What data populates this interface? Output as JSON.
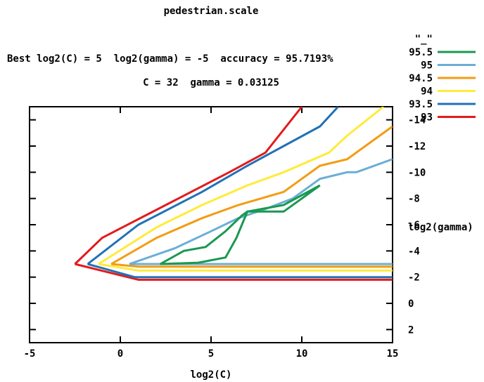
{
  "chart_data": {
    "type": "line",
    "title": "pedestrian.scale",
    "subtitle_1": "Best log2(C) = 5  log2(gamma) = -5  accuracy = 95.7193%",
    "subtitle_2": "C = 32  gamma = 0.03125",
    "xlabel": "log2(C)",
    "ylabel": "log2(gamma)",
    "xlim": [
      -5,
      15
    ],
    "ylim": [
      3,
      -15
    ],
    "x_ticks": [
      -5,
      0,
      5,
      10,
      15
    ],
    "y_ticks": [
      2,
      0,
      -2,
      -4,
      -6,
      -8,
      -10,
      -12,
      -14
    ],
    "x_tick_labels": [
      "-5",
      "0",
      "5",
      "10",
      "15"
    ],
    "y_tick_labels": [
      "2",
      "0",
      "-2",
      "-4",
      "-6",
      "-8",
      "-10",
      "-12",
      "-14"
    ],
    "legend_placement": "top-right outside",
    "legend_title": "\"_\"",
    "grid": false,
    "series": [
      {
        "name": "95.5",
        "color": "#1a9850",
        "points": [
          [
            11,
            -9
          ],
          [
            10,
            -8
          ],
          [
            9,
            -7
          ],
          [
            8,
            -7
          ],
          [
            7,
            -7
          ],
          [
            6.7,
            -6.7
          ],
          [
            5.8,
            -5.5
          ],
          [
            4.7,
            -4.3
          ],
          [
            3.5,
            -4
          ],
          [
            2.2,
            -3
          ],
          [
            4.3,
            -3.1
          ],
          [
            5.8,
            -3.5
          ],
          [
            6.4,
            -5
          ],
          [
            7,
            -7
          ],
          [
            9,
            -7.5
          ],
          [
            11,
            -9
          ]
        ]
      },
      {
        "name": "95",
        "color": "#6baed6",
        "points": [
          [
            0.5,
            -3
          ],
          [
            3,
            -4.2
          ],
          [
            5,
            -5.5
          ],
          [
            6.5,
            -6.5
          ],
          [
            8,
            -7.2
          ],
          [
            9.5,
            -8
          ],
          [
            11,
            -9.5
          ],
          [
            12.5,
            -10
          ],
          [
            13,
            -10
          ],
          [
            15,
            -11
          ]
        ],
        "tail": [
          [
            0.5,
            -3
          ],
          [
            15,
            -3
          ]
        ]
      },
      {
        "name": "94.5",
        "color": "#f39c12",
        "points": [
          [
            -0.5,
            -3
          ],
          [
            2,
            -5
          ],
          [
            4.5,
            -6.5
          ],
          [
            6.5,
            -7.5
          ],
          [
            9,
            -8.5
          ],
          [
            11,
            -10.5
          ],
          [
            12.5,
            -11
          ],
          [
            13.5,
            -12
          ],
          [
            15,
            -13.5
          ]
        ],
        "tail": [
          [
            -0.5,
            -3
          ],
          [
            1,
            -2.8
          ],
          [
            15,
            -2.8
          ]
        ]
      },
      {
        "name": "94",
        "color": "#ffeb3b",
        "points": [
          [
            -1.2,
            -3
          ],
          [
            2,
            -5.8
          ],
          [
            4.5,
            -7.5
          ],
          [
            7,
            -9
          ],
          [
            9,
            -10
          ],
          [
            11.5,
            -11.5
          ],
          [
            12.5,
            -12.8
          ],
          [
            14.5,
            -15
          ]
        ],
        "tail": [
          [
            -1.2,
            -3
          ],
          [
            1,
            -2.5
          ],
          [
            15,
            -2.5
          ]
        ]
      },
      {
        "name": "93.5",
        "color": "#2171b5",
        "points": [
          [
            -1.8,
            -3
          ],
          [
            1,
            -6
          ],
          [
            4.5,
            -8.5
          ],
          [
            7,
            -10.5
          ],
          [
            9,
            -12
          ],
          [
            11,
            -13.5
          ],
          [
            12,
            -15
          ]
        ],
        "tail": [
          [
            -1.8,
            -3
          ],
          [
            0.8,
            -2
          ],
          [
            15,
            -2
          ]
        ]
      },
      {
        "name": "93",
        "color": "#e31a1c",
        "points": [
          [
            -2.5,
            -3
          ],
          [
            -1,
            -5
          ],
          [
            2.5,
            -7.5
          ],
          [
            6,
            -10
          ],
          [
            8,
            -11.5
          ],
          [
            10,
            -15
          ]
        ],
        "tail": [
          [
            -2.5,
            -3
          ],
          [
            1,
            -1.8
          ],
          [
            15,
            -1.8
          ]
        ]
      }
    ]
  }
}
